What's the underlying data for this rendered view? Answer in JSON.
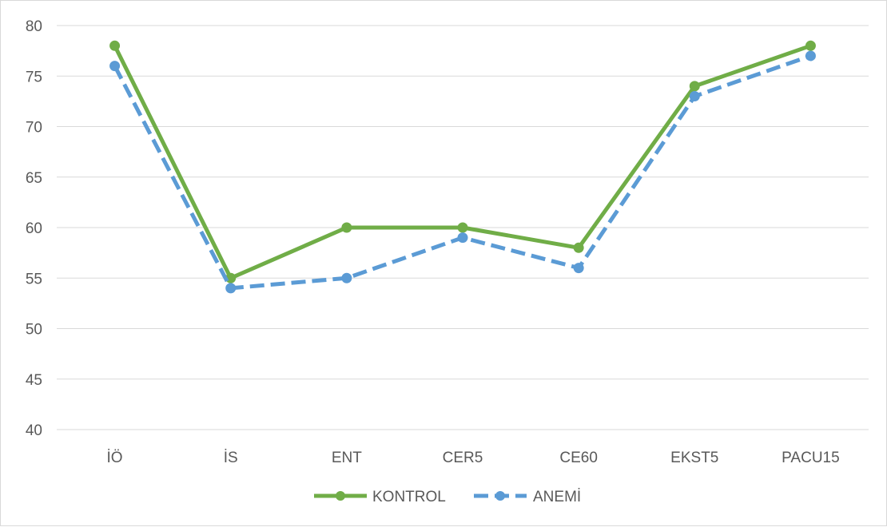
{
  "chart_data": {
    "type": "line",
    "categories": [
      "İÖ",
      "İS",
      "ENT",
      "CER5",
      "CE60",
      "EKST5",
      "PACU15"
    ],
    "series": [
      {
        "name": "KONTROL",
        "values": [
          78,
          55,
          60,
          60,
          58,
          74,
          78
        ],
        "color": "#70ad47",
        "dash": "solid",
        "marker": "circle"
      },
      {
        "name": "ANEMİ",
        "values": [
          76,
          54,
          55,
          59,
          56,
          73,
          77
        ],
        "color": "#5b9bd5",
        "dash": "dashed",
        "marker": "circle"
      }
    ],
    "yticks": [
      40,
      45,
      50,
      55,
      60,
      65,
      70,
      75,
      80
    ],
    "ylim": [
      40,
      80
    ],
    "grid": true,
    "legend_position": "bottom",
    "title": "",
    "xlabel": "",
    "ylabel": ""
  }
}
